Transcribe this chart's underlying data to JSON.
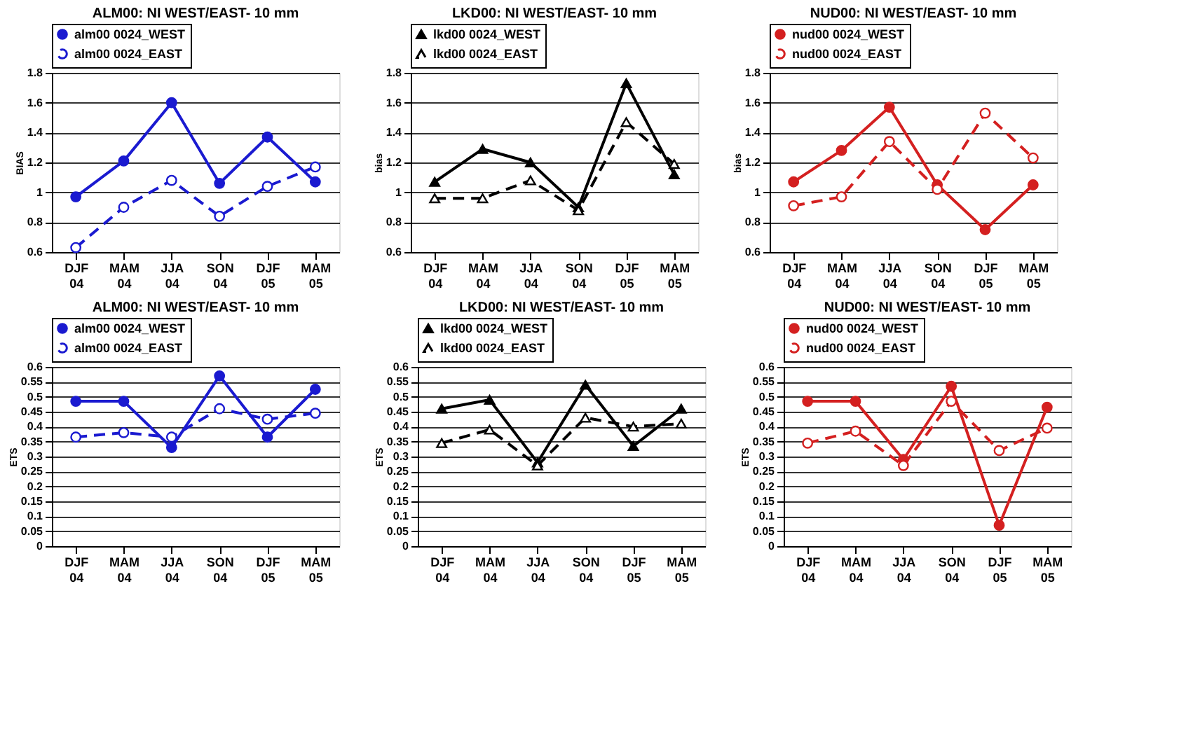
{
  "chart_data": [
    {
      "type": "line",
      "title": "ALM00: NI WEST/EAST-  10 mm",
      "ylabel": "BIAS",
      "categories": [
        "DJF 04",
        "MAM 04",
        "JJA 04",
        "SON 04",
        "DJF 05",
        "MAM 05"
      ],
      "ylim": [
        0.6,
        1.8
      ],
      "yticks": [
        0.6,
        0.8,
        1,
        1.2,
        1.4,
        1.6,
        1.8
      ],
      "grid": "y",
      "legend": "top",
      "series": [
        {
          "name": "alm00 0024_WEST",
          "color": "#1a1ad0",
          "marker": "circle",
          "line_style": "solid",
          "values": [
            0.97,
            1.21,
            1.6,
            1.06,
            1.37,
            1.07
          ]
        },
        {
          "name": "alm00 0024_EAST",
          "color": "#1a1ad0",
          "marker": "circle",
          "line_style": "dashed",
          "values": [
            0.63,
            0.9,
            1.08,
            0.84,
            1.04,
            1.17
          ]
        }
      ]
    },
    {
      "type": "line",
      "title": "LKD00: NI WEST/EAST-  10 mm",
      "ylabel": "bias",
      "categories": [
        "DJF 04",
        "MAM 04",
        "JJA 04",
        "SON 04",
        "DJF 05",
        "MAM 05"
      ],
      "ylim": [
        0.6,
        1.8
      ],
      "yticks": [
        0.6,
        0.8,
        1,
        1.2,
        1.4,
        1.6,
        1.8
      ],
      "grid": "y",
      "legend": "top",
      "series": [
        {
          "name": "lkd00 0024_WEST",
          "color": "#000000",
          "marker": "triangle",
          "line_style": "solid",
          "values": [
            1.07,
            1.29,
            1.2,
            0.9,
            1.73,
            1.12
          ]
        },
        {
          "name": "lkd00 0024_EAST",
          "color": "#000000",
          "marker": "triangle",
          "line_style": "dashed",
          "values": [
            0.96,
            0.96,
            1.08,
            0.88,
            1.47,
            1.19
          ]
        }
      ]
    },
    {
      "type": "line",
      "title": "NUD00: NI WEST/EAST-  10 mm",
      "ylabel": "bias",
      "categories": [
        "DJF 04",
        "MAM 04",
        "JJA 04",
        "SON 04",
        "DJF 05",
        "MAM 05"
      ],
      "ylim": [
        0.6,
        1.8
      ],
      "yticks": [
        0.6,
        0.8,
        1,
        1.2,
        1.4,
        1.6,
        1.8
      ],
      "grid": "y",
      "legend": "top",
      "series": [
        {
          "name": "nud00 0024_WEST",
          "color": "#d42020",
          "marker": "circle",
          "line_style": "solid",
          "values": [
            1.07,
            1.28,
            1.57,
            1.05,
            0.75,
            1.05
          ]
        },
        {
          "name": "nud00 0024_EAST",
          "color": "#d42020",
          "marker": "circle",
          "line_style": "dashed",
          "values": [
            0.91,
            0.97,
            1.34,
            1.02,
            1.53,
            1.23
          ]
        }
      ]
    },
    {
      "type": "line",
      "title": "ALM00: NI WEST/EAST-  10 mm",
      "ylabel": "ETS",
      "categories": [
        "DJF 04",
        "MAM 04",
        "JJA 04",
        "SON 04",
        "DJF 05",
        "MAM 05"
      ],
      "ylim": [
        0,
        0.6
      ],
      "yticks": [
        0,
        0.05,
        0.1,
        0.15,
        0.2,
        0.25,
        0.3,
        0.35,
        0.4,
        0.45,
        0.5,
        0.55,
        0.6
      ],
      "grid": "y",
      "legend": "top",
      "series": [
        {
          "name": "alm00 0024_WEST",
          "color": "#1a1ad0",
          "marker": "circle",
          "line_style": "solid",
          "values": [
            0.485,
            0.485,
            0.33,
            0.57,
            0.365,
            0.525
          ]
        },
        {
          "name": "alm00 0024_EAST",
          "color": "#1a1ad0",
          "marker": "circle",
          "line_style": "dashed",
          "values": [
            0.365,
            0.38,
            0.365,
            0.46,
            0.425,
            0.445
          ]
        }
      ]
    },
    {
      "type": "line",
      "title": "LKD00: NI WEST/EAST-  10 mm",
      "ylabel": "ETS",
      "categories": [
        "DJF 04",
        "MAM 04",
        "JJA 04",
        "SON 04",
        "DJF 05",
        "MAM 05"
      ],
      "ylim": [
        0,
        0.6
      ],
      "yticks": [
        0,
        0.05,
        0.1,
        0.15,
        0.2,
        0.25,
        0.3,
        0.35,
        0.4,
        0.45,
        0.5,
        0.55,
        0.6
      ],
      "grid": "y",
      "legend": "top",
      "series": [
        {
          "name": "lkd00 0024_WEST",
          "color": "#000000",
          "marker": "triangle",
          "line_style": "solid",
          "values": [
            0.46,
            0.49,
            0.28,
            0.54,
            0.335,
            0.46
          ]
        },
        {
          "name": "lkd00 0024_EAST",
          "color": "#000000",
          "marker": "triangle",
          "line_style": "dashed",
          "values": [
            0.345,
            0.39,
            0.27,
            0.43,
            0.4,
            0.41
          ]
        }
      ]
    },
    {
      "type": "line",
      "title": "NUD00: NI WEST/EAST-  10 mm",
      "ylabel": "ETS",
      "categories": [
        "DJF 04",
        "MAM 04",
        "JJA 04",
        "SON 04",
        "DJF 05",
        "MAM 05"
      ],
      "ylim": [
        0,
        0.6
      ],
      "yticks": [
        0,
        0.05,
        0.1,
        0.15,
        0.2,
        0.25,
        0.3,
        0.35,
        0.4,
        0.45,
        0.5,
        0.55,
        0.6
      ],
      "grid": "y",
      "legend": "top",
      "series": [
        {
          "name": "nud00 0024_WEST",
          "color": "#d42020",
          "marker": "circle",
          "line_style": "solid",
          "values": [
            0.485,
            0.485,
            0.29,
            0.535,
            0.07,
            0.465
          ]
        },
        {
          "name": "nud00 0024_EAST",
          "color": "#d42020",
          "marker": "circle",
          "line_style": "dashed",
          "values": [
            0.345,
            0.385,
            0.27,
            0.485,
            0.32,
            0.395
          ]
        }
      ]
    }
  ]
}
